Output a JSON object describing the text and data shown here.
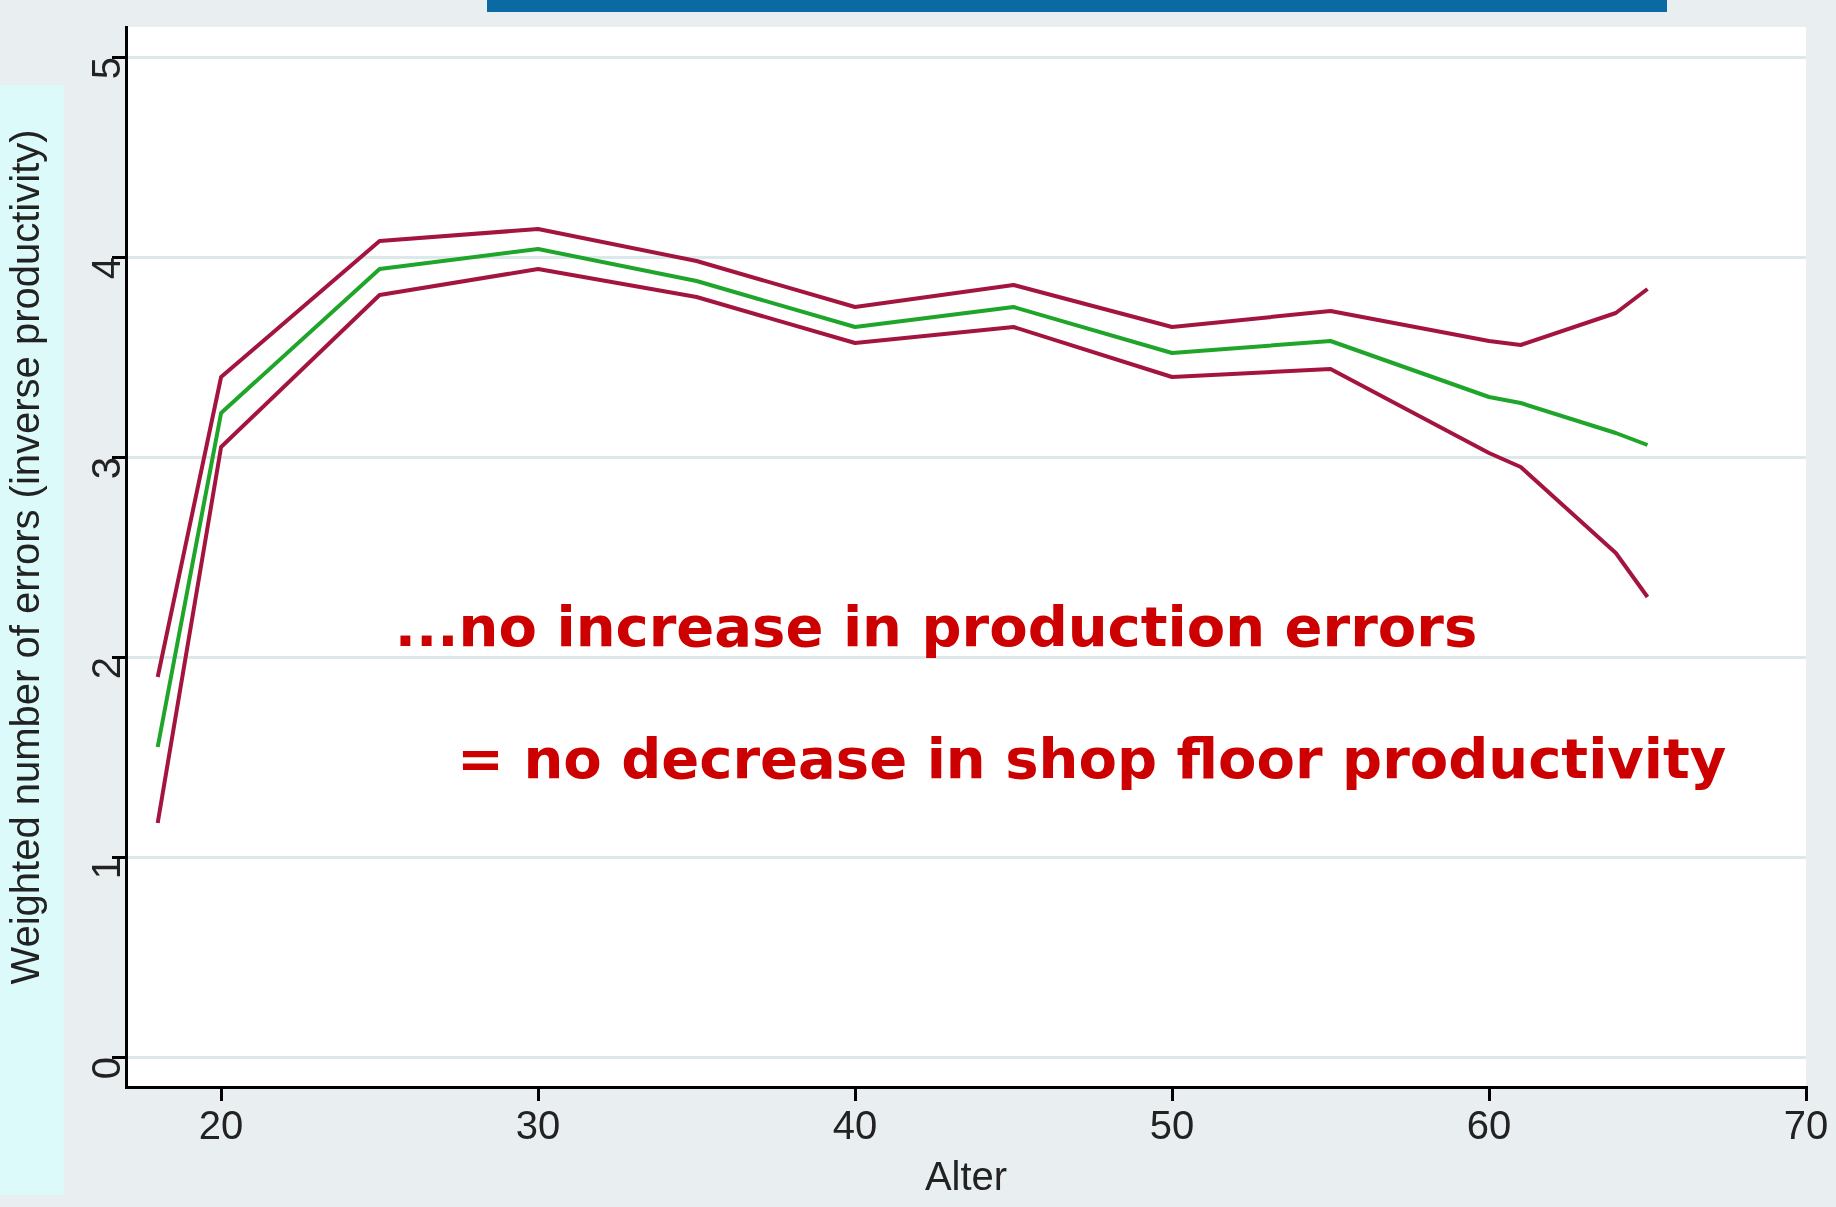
{
  "chart_data": {
    "type": "line",
    "xlabel": "Alter",
    "ylabel": "Weighted number of errors (inverse productivity)",
    "x": [
      18,
      20,
      25,
      30,
      35,
      40,
      45,
      50,
      55,
      60,
      61,
      64,
      65
    ],
    "series": [
      {
        "color": "#a3153f",
        "values": [
          1.9,
          3.4,
          4.08,
          4.14,
          3.98,
          3.75,
          3.86,
          3.65,
          3.73,
          3.58,
          3.56,
          3.72,
          3.84
        ]
      },
      {
        "color": "#1fa52a",
        "values": [
          1.55,
          3.22,
          3.94,
          4.04,
          3.88,
          3.65,
          3.75,
          3.52,
          3.58,
          3.3,
          3.27,
          3.12,
          3.06
        ]
      },
      {
        "color": "#a3153f",
        "values": [
          1.17,
          3.05,
          3.81,
          3.94,
          3.8,
          3.57,
          3.65,
          3.4,
          3.44,
          3.02,
          2.95,
          2.52,
          2.3
        ]
      }
    ],
    "xlim": [
      17,
      70
    ],
    "xticks": [
      20,
      30,
      40,
      50,
      60,
      70
    ],
    "ylim": [
      -0.15,
      5.15
    ],
    "yticks": [
      0,
      1,
      2,
      3,
      4,
      5
    ],
    "grid": "y",
    "line_style": "solid",
    "marker": "none",
    "legend": false,
    "annotations": [
      "...no increase in production errors",
      "= no decrease in shop floor productivity"
    ]
  }
}
